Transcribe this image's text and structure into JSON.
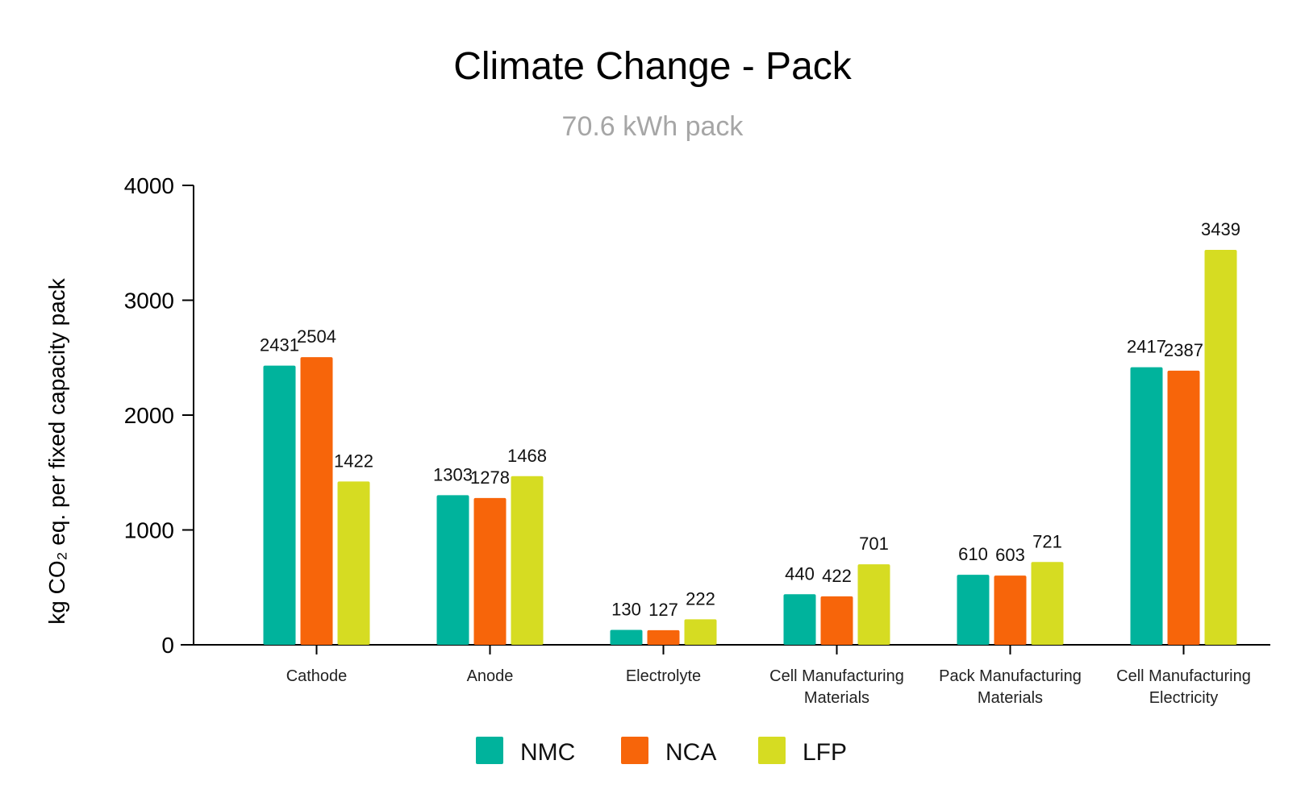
{
  "chart_data": {
    "type": "bar",
    "title": "Climate Change - Pack",
    "subtitle": "70.6 kWh pack",
    "ylabel": "kg CO₂ eq. per fixed capacity pack",
    "xlabel": "",
    "ylim": [
      0,
      4000
    ],
    "yticks": [
      0,
      1000,
      2000,
      3000,
      4000
    ],
    "grid": false,
    "legend_position": "bottom-center",
    "categories": [
      [
        "Cathode"
      ],
      [
        "Anode"
      ],
      [
        "Electrolyte"
      ],
      [
        "Cell Manufacturing",
        "Materials"
      ],
      [
        "Pack Manufacturing",
        "Materials"
      ],
      [
        "Cell Manufacturing",
        "Electricity"
      ]
    ],
    "series": [
      {
        "name": "NMC",
        "color": "#00b39c",
        "values": [
          2431,
          1303,
          130,
          440,
          610,
          2417
        ]
      },
      {
        "name": "NCA",
        "color": "#f7650a",
        "values": [
          2504,
          1278,
          127,
          422,
          603,
          2387
        ]
      },
      {
        "name": "LFP",
        "color": "#d6dc22",
        "values": [
          1422,
          1468,
          222,
          701,
          721,
          3439
        ]
      }
    ]
  }
}
